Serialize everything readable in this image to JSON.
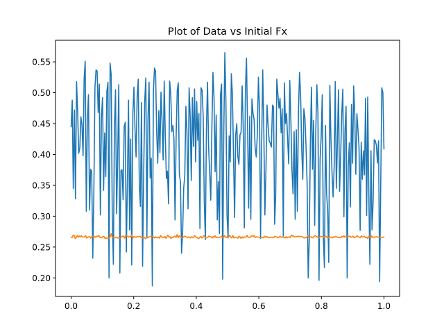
{
  "chart_data": {
    "type": "line",
    "title": "Plot of Data vs Initial Fx",
    "xlabel": "",
    "ylabel": "",
    "xlim": [
      -0.05,
      1.05
    ],
    "ylim": [
      0.17,
      0.585
    ],
    "x_ticks": [
      0.0,
      0.2,
      0.4,
      0.6,
      0.8,
      1.0
    ],
    "x_tick_labels": [
      "0.0",
      "0.2",
      "0.4",
      "0.6",
      "0.8",
      "1.0"
    ],
    "y_ticks": [
      0.2,
      0.25,
      0.3,
      0.35,
      0.4,
      0.45,
      0.5,
      0.55
    ],
    "y_tick_labels": [
      "0.20",
      "0.25",
      "0.30",
      "0.35",
      "0.40",
      "0.45",
      "0.50",
      "0.55"
    ],
    "grid": false,
    "legend": "none",
    "x_range": [
      0.0,
      1.0
    ],
    "series": [
      {
        "color": "#1f77b4",
        "values": [
          0.445,
          0.488,
          0.345,
          0.472,
          0.328,
          0.518,
          0.47,
          0.402,
          0.41,
          0.461,
          0.447,
          0.398,
          0.523,
          0.551,
          0.308,
          0.456,
          0.497,
          0.31,
          0.376,
          0.372,
          0.232,
          0.34,
          0.509,
          0.537,
          0.535,
          0.468,
          0.514,
          0.302,
          0.461,
          0.492,
          0.342,
          0.435,
          0.364,
          0.502,
          0.517,
          0.2,
          0.548,
          0.529,
          0.304,
          0.222,
          0.443,
          0.505,
          0.304,
          0.395,
          0.513,
          0.208,
          0.374,
          0.375,
          0.327,
          0.445,
          0.452,
          0.242,
          0.359,
          0.488,
          0.278,
          0.425,
          0.221,
          0.465,
          0.509,
          0.442,
          0.396,
          0.495,
          0.522,
          0.348,
          0.316,
          0.484,
          0.219,
          0.367,
          0.487,
          0.524,
          0.266,
          0.459,
          0.517,
          0.362,
          0.394,
          0.187,
          0.503,
          0.54,
          0.535,
          0.438,
          0.386,
          0.471,
          0.403,
          0.501,
          0.455,
          0.391,
          0.519,
          0.428,
          0.361,
          0.373,
          0.32,
          0.519,
          0.5,
          0.437,
          0.447,
          0.424,
          0.294,
          0.43,
          0.503,
          0.516,
          0.367,
          0.356,
          0.24,
          0.273,
          0.346,
          0.366,
          0.478,
          0.438,
          0.312,
          0.508,
          0.461,
          0.358,
          0.492,
          0.413,
          0.506,
          0.388,
          0.486,
          0.423,
          0.466,
          0.28,
          0.508,
          0.504,
          0.462,
          0.324,
          0.262,
          0.443,
          0.517,
          0.411,
          0.371,
          0.326,
          0.44,
          0.533,
          0.492,
          0.372,
          0.464,
          0.294,
          0.356,
          0.272,
          0.497,
          0.514,
          0.198,
          0.434,
          0.565,
          0.485,
          0.302,
          0.265,
          0.43,
          0.388,
          0.531,
          0.497,
          0.399,
          0.298,
          0.431,
          0.45,
          0.397,
          0.384,
          0.432,
          0.436,
          0.511,
          0.443,
          0.281,
          0.505,
          0.556,
          0.445,
          0.313,
          0.462,
          0.295,
          0.49,
          0.467,
          0.457,
          0.411,
          0.396,
          0.432,
          0.525,
          0.476,
          0.264,
          0.415,
          0.537,
          0.44,
          0.302,
          0.377,
          0.48,
          0.446,
          0.422,
          0.418,
          0.412,
          0.48,
          0.477,
          0.287,
          0.335,
          0.522,
          0.498,
          0.475,
          0.491,
          0.435,
          0.474,
          0.267,
          0.516,
          0.45,
          0.466,
          0.425,
          0.385,
          0.52,
          0.455,
          0.375,
          0.336,
          0.437,
          0.295,
          0.44,
          0.308,
          0.469,
          0.533,
          0.497,
          0.41,
          0.36,
          0.474,
          0.459,
          0.413,
          0.353,
          0.2,
          0.262,
          0.418,
          0.509,
          0.376,
          0.455,
          0.285,
          0.436,
          0.513,
          0.467,
          0.196,
          0.392,
          0.429,
          0.497,
          0.266,
          0.217,
          0.447,
          0.337,
          0.31,
          0.225,
          0.512,
          0.426,
          0.372,
          0.331,
          0.38,
          0.518,
          0.345,
          0.421,
          0.505,
          0.34,
          0.398,
          0.466,
          0.506,
          0.299,
          0.438,
          0.478,
          0.2,
          0.38,
          0.419,
          0.315,
          0.481,
          0.386,
          0.511,
          0.467,
          0.368,
          0.466,
          0.44,
          0.41,
          0.277,
          0.42,
          0.36,
          0.406,
          0.367,
          0.491,
          0.301,
          0.493,
          0.337,
          0.222,
          0.406,
          0.278,
          0.324,
          0.424,
          0.422,
          0.415,
          0.386,
          0.422,
          0.194,
          0.347,
          0.508,
          0.5,
          0.409
        ]
      },
      {
        "color": "#ff7f0e",
        "values": [
          0.2659,
          0.2655,
          0.2692,
          0.2686,
          0.2637,
          0.2656,
          0.2689,
          0.2659,
          0.268,
          0.2665,
          0.2684,
          0.2667,
          0.2664,
          0.2663,
          0.2686,
          0.2648,
          0.2654,
          0.2667,
          0.2667,
          0.2646,
          0.2671,
          0.2673,
          0.2647,
          0.2672,
          0.2657,
          0.2676,
          0.2674,
          0.2686,
          0.2656,
          0.2649,
          0.2653,
          0.2674,
          0.2668,
          0.2638,
          0.2649,
          0.2638,
          0.2654,
          0.2639,
          0.2671,
          0.2716,
          0.2656,
          0.2658,
          0.2649,
          0.2658,
          0.265,
          0.2652,
          0.2646,
          0.2645,
          0.2644,
          0.2665,
          0.2677,
          0.2678,
          0.2645,
          0.2689,
          0.2677,
          0.2674,
          0.2661,
          0.2675,
          0.2663,
          0.2699,
          0.2646,
          0.2668,
          0.2669,
          0.2656,
          0.2671,
          0.2672,
          0.2673,
          0.2674,
          0.2657,
          0.2644,
          0.2663,
          0.2655,
          0.2636,
          0.2649,
          0.2649,
          0.2661,
          0.2665,
          0.2673,
          0.2679,
          0.2671,
          0.2666,
          0.2647,
          0.2666,
          0.2653,
          0.265,
          0.2662,
          0.2643,
          0.2688,
          0.2664,
          0.2651,
          0.2652,
          0.2674,
          0.2643,
          0.2666,
          0.2695,
          0.2661,
          0.2669,
          0.2638,
          0.2658,
          0.2654,
          0.2672,
          0.2676,
          0.2656,
          0.2703,
          0.2653,
          0.2682,
          0.2663,
          0.2658,
          0.2647,
          0.2658,
          0.2675,
          0.2673,
          0.2664,
          0.2654,
          0.2663,
          0.2663,
          0.2647,
          0.2668,
          0.2653,
          0.2657,
          0.2688,
          0.2666,
          0.2655,
          0.2646,
          0.2636,
          0.2655,
          0.2674,
          0.2647,
          0.2658,
          0.2686,
          0.2662,
          0.2646,
          0.2653,
          0.2661,
          0.2679,
          0.2671,
          0.2663,
          0.2647,
          0.2672,
          0.2655,
          0.2682,
          0.2653,
          0.2656,
          0.2657,
          0.2655,
          0.2659,
          0.2674,
          0.2659,
          0.2654,
          0.2686,
          0.266,
          0.2656,
          0.2682,
          0.2669,
          0.2691,
          0.2661,
          0.2648,
          0.2688,
          0.2649,
          0.2656,
          0.2657,
          0.2656,
          0.2641,
          0.2676,
          0.2667,
          0.2641,
          0.2665,
          0.2647,
          0.2667,
          0.2661,
          0.266,
          0.2692,
          0.2656,
          0.2656,
          0.2657,
          0.2681,
          0.268,
          0.2672,
          0.2686,
          0.2653,
          0.2666,
          0.2662,
          0.266,
          0.2656,
          0.2649,
          0.2652,
          0.2655,
          0.265,
          0.2676,
          0.2657,
          0.2673,
          0.2657,
          0.2649,
          0.2655,
          0.2659,
          0.2658,
          0.2659,
          0.2652,
          0.2676,
          0.2663,
          0.2666,
          0.2648,
          0.2658,
          0.2677,
          0.2663,
          0.2652,
          0.2671,
          0.265,
          0.2649,
          0.2669,
          0.2648,
          0.2659,
          0.2668,
          0.2653,
          0.2695,
          0.2678,
          0.2682,
          0.2663,
          0.2669,
          0.2668,
          0.2668,
          0.2676,
          0.2667,
          0.2674,
          0.267,
          0.2667,
          0.265,
          0.2645,
          0.2656,
          0.2656,
          0.2692,
          0.2662,
          0.2665,
          0.2666,
          0.2651,
          0.2649,
          0.2671,
          0.2686,
          0.2675,
          0.2666,
          0.2651,
          0.2648,
          0.2667,
          0.2672,
          0.2673,
          0.2667,
          0.2657,
          0.2677,
          0.2671,
          0.2649,
          0.2649,
          0.2673,
          0.2657,
          0.2657,
          0.2649,
          0.2668,
          0.2659,
          0.2672,
          0.2667,
          0.2655,
          0.2653,
          0.2659,
          0.265,
          0.2674,
          0.2662,
          0.2684,
          0.2661,
          0.2675,
          0.2666,
          0.2682,
          0.2673,
          0.2677,
          0.2657,
          0.2663,
          0.2677,
          0.2651,
          0.2661,
          0.2667,
          0.2686,
          0.2664,
          0.266,
          0.2651,
          0.2681,
          0.2664,
          0.2669,
          0.2674,
          0.2654,
          0.2659,
          0.2639,
          0.2672,
          0.2676,
          0.2643,
          0.2683,
          0.2656,
          0.266,
          0.2659,
          0.2666,
          0.2671,
          0.2659,
          0.2657,
          0.2661,
          0.2656,
          0.266,
          0.2656,
          0.2662
        ]
      }
    ]
  }
}
